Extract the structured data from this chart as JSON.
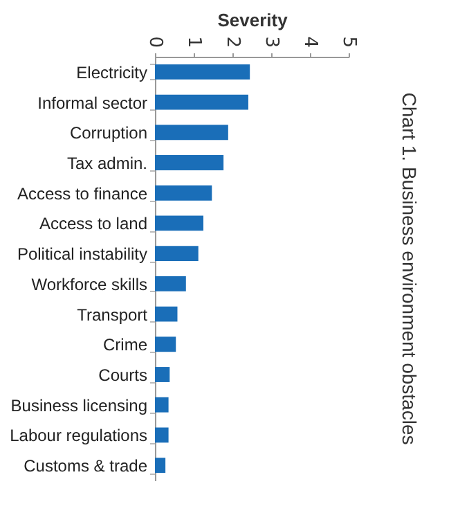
{
  "chart_data": {
    "type": "bar",
    "orientation": "horizontal",
    "title": "Chart 1. Business environment obstacles",
    "xlabel": "Severity",
    "categories": [
      "Electricity",
      "Informal sector",
      "Corruption",
      "Tax admin.",
      "Access to finance",
      "Access to land",
      "Political instability",
      "Workforce skills",
      "Transport",
      "Crime",
      "Courts",
      "Business licensing",
      "Labour regulations",
      "Customs & trade"
    ],
    "values": [
      2.45,
      2.41,
      1.89,
      1.77,
      1.47,
      1.25,
      1.12,
      0.8,
      0.58,
      0.54,
      0.38,
      0.35,
      0.35,
      0.27
    ],
    "color": "#1a6eb8",
    "xlim": [
      0,
      5
    ],
    "xticks": [
      0,
      1,
      2,
      3,
      4,
      5
    ],
    "grid": false
  }
}
